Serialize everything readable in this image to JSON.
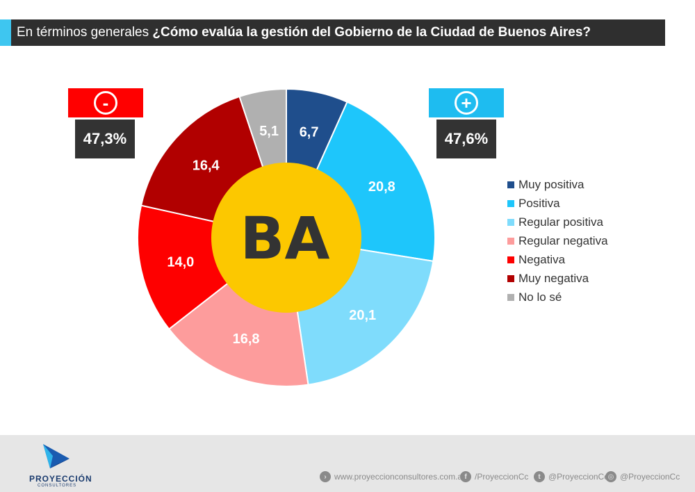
{
  "header": {
    "title_prefix": "En términos generales ",
    "title_question": "¿Cómo evalúa la gestión del Gobierno de la Ciudad de Buenos Aires?"
  },
  "summary": {
    "negative": {
      "symbol": "-",
      "value": "47,3%",
      "color": "#ff0000"
    },
    "positive": {
      "symbol": "+",
      "value": "47,6%",
      "color": "#1ebcf0"
    }
  },
  "center_logo": {
    "text": "BA",
    "bg_color": "#fcc800",
    "text_color": "#333333"
  },
  "chart_data": {
    "type": "pie",
    "title": "¿Cómo evalúa la gestión del Gobierno de la Ciudad de Buenos Aires?",
    "donut": true,
    "legend_position": "right",
    "slices": [
      {
        "label": "Muy positiva",
        "value": 6.7,
        "display": "6,7",
        "color": "#1f4e8c"
      },
      {
        "label": "Positiva",
        "value": 20.8,
        "display": "20,8",
        "color": "#1ec6fb"
      },
      {
        "label": "Regular positiva",
        "value": 20.1,
        "display": "20,1",
        "color": "#7fdcfc"
      },
      {
        "label": "Regular negativa",
        "value": 16.8,
        "display": "16,8",
        "color": "#fd9c9c"
      },
      {
        "label": "Negativa",
        "value": 14.0,
        "display": "14,0",
        "color": "#fe0000"
      },
      {
        "label": "Muy negativa",
        "value": 16.4,
        "display": "16,4",
        "color": "#b10000"
      },
      {
        "label": "No lo sé",
        "value": 5.1,
        "display": "5,1",
        "color": "#b0b0b0"
      }
    ]
  },
  "footer": {
    "logo_name": "PROYECCIÓN",
    "logo_sub": "CONSULTORES",
    "website": "www.proyeccionconsultores.com.ar",
    "facebook": "/ProyeccionCc",
    "twitter": "@ProyeccionCc",
    "instagram": "@ProyeccionCc",
    "icons": {
      "website": "arrow-right-icon",
      "facebook": "facebook-icon",
      "twitter": "twitter-icon",
      "instagram": "instagram-icon"
    }
  }
}
